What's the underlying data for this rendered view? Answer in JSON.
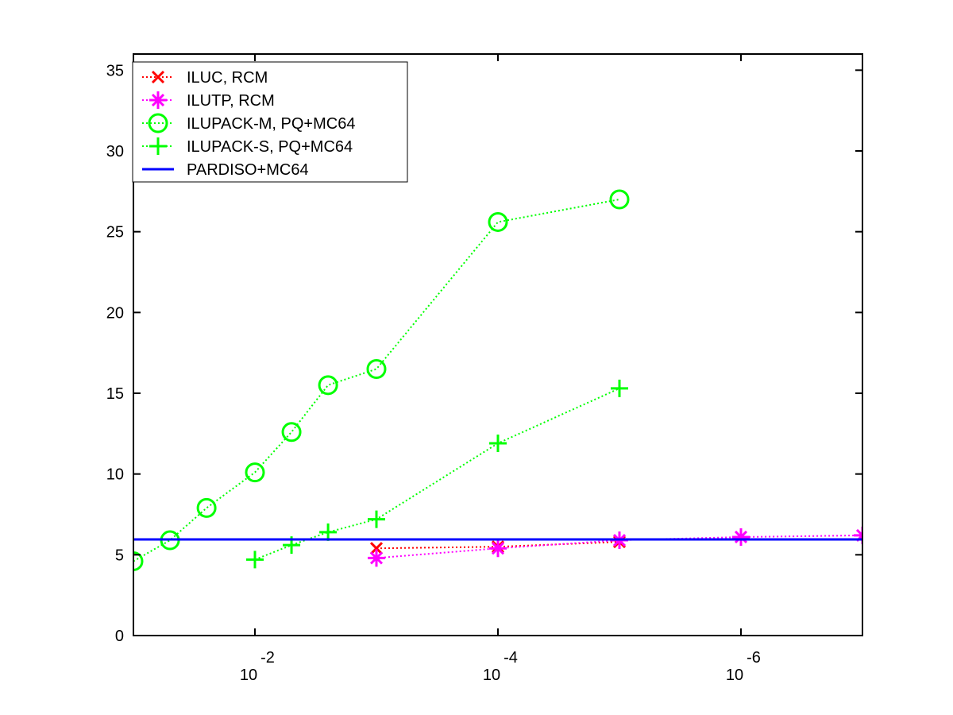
{
  "chart_data": {
    "type": "line",
    "title": "",
    "xlabel": "",
    "ylabel": "",
    "x_scale": "log",
    "x_reversed": true,
    "xlim": [
      0.1,
      1e-07
    ],
    "ylim": [
      0,
      36
    ],
    "grid": false,
    "legend_position": "top-left",
    "x_ticks": [
      {
        "value": 0.01,
        "base": "10",
        "exp": "-2"
      },
      {
        "value": 0.0001,
        "base": "10",
        "exp": "-4"
      },
      {
        "value": 1e-06,
        "base": "10",
        "exp": "-6"
      }
    ],
    "y_ticks": [
      {
        "value": 0,
        "label": "0"
      },
      {
        "value": 5,
        "label": "5"
      },
      {
        "value": 10,
        "label": "10"
      },
      {
        "value": 15,
        "label": "15"
      },
      {
        "value": 20,
        "label": "20"
      },
      {
        "value": 25,
        "label": "25"
      },
      {
        "value": 30,
        "label": "30"
      },
      {
        "value": 35,
        "label": "35"
      }
    ],
    "series": [
      {
        "name": "ILUC, RCM",
        "color": "#ff0000",
        "line_style": "dotted",
        "marker": "x",
        "points": [
          [
            0.001,
            5.4
          ],
          [
            0.0001,
            5.5
          ],
          [
            1e-05,
            5.8
          ]
        ]
      },
      {
        "name": "ILUTP, RCM",
        "color": "#ff00ff",
        "line_style": "dotted",
        "marker": "asterisk",
        "points": [
          [
            0.001,
            4.8
          ],
          [
            0.0001,
            5.4
          ],
          [
            1e-05,
            5.9
          ],
          [
            1e-06,
            6.1
          ],
          [
            1e-07,
            6.2
          ]
        ]
      },
      {
        "name": "ILUPACK-M, PQ+MC64",
        "color": "#00ff00",
        "line_style": "dotted",
        "marker": "circle",
        "points": [
          [
            0.1,
            4.6
          ],
          [
            0.05,
            5.9
          ],
          [
            0.025,
            7.9
          ],
          [
            0.01,
            10.1
          ],
          [
            0.005,
            12.6
          ],
          [
            0.0025,
            15.5
          ],
          [
            0.001,
            16.5
          ],
          [
            0.0001,
            25.6
          ],
          [
            1e-05,
            27.0
          ]
        ]
      },
      {
        "name": "ILUPACK-S, PQ+MC64",
        "color": "#00ff00",
        "line_style": "dotted",
        "marker": "plus",
        "points": [
          [
            0.01,
            4.7
          ],
          [
            0.005,
            5.6
          ],
          [
            0.0025,
            6.4
          ],
          [
            0.001,
            7.2
          ],
          [
            0.0001,
            11.9
          ],
          [
            1e-05,
            15.3
          ]
        ]
      },
      {
        "name": "PARDISO+MC64",
        "color": "#0000ff",
        "line_style": "solid",
        "marker": "none",
        "points": [
          [
            0.1,
            5.95
          ],
          [
            1e-07,
            5.95
          ]
        ]
      }
    ]
  }
}
